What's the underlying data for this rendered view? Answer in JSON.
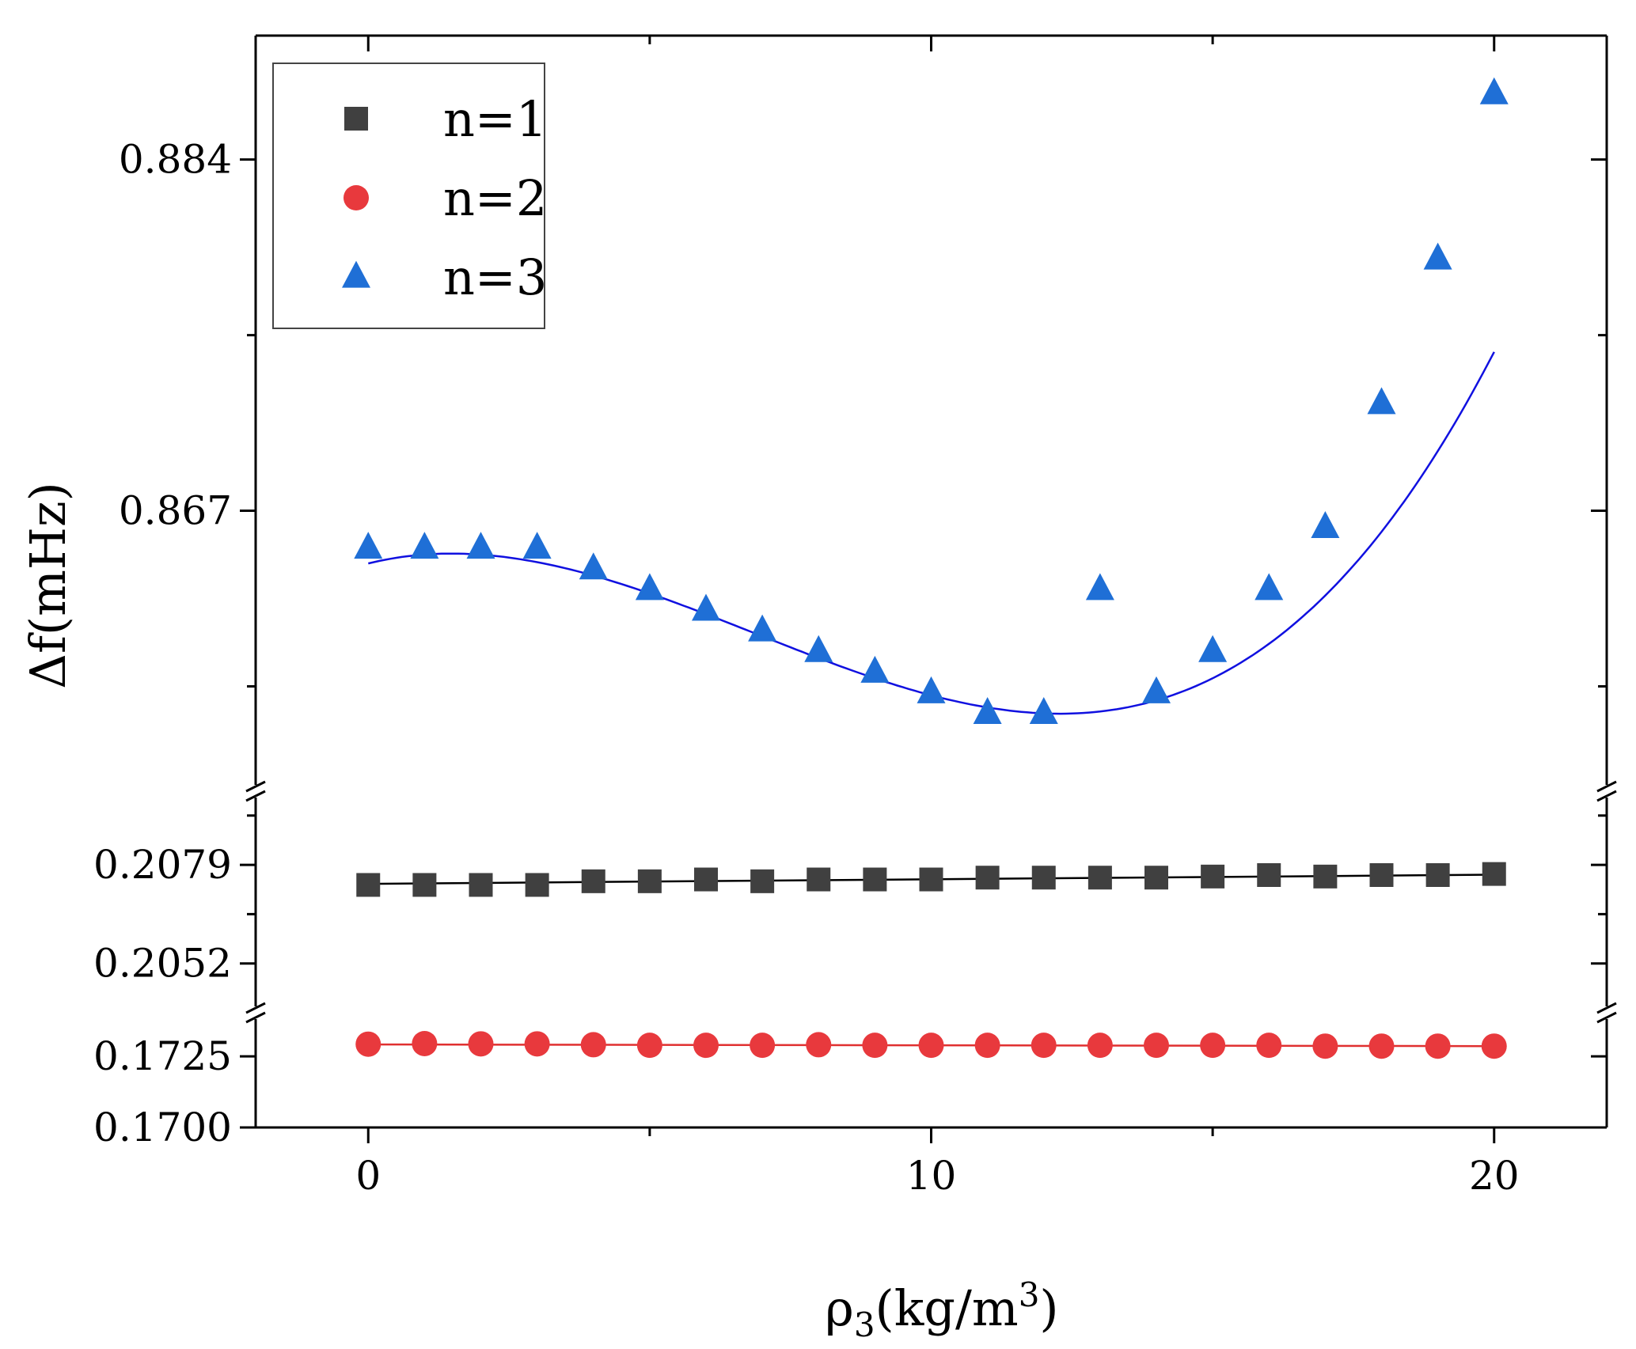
{
  "chart_data": {
    "type": "scatter",
    "title": "",
    "xlabel": "ρ",
    "xlabel_subscript": "3",
    "xlabel_unit_open": "(kg/m",
    "xlabel_unit_sup": "3",
    "xlabel_unit_close": ")",
    "ylabel": "Δf(mHz)",
    "xlim": [
      -2,
      22
    ],
    "x_ticks": [
      "0",
      "10",
      "20"
    ],
    "x_tick_values": [
      0,
      10,
      20
    ],
    "broken_y_axis": true,
    "y_segments": [
      {
        "ylim": [
          0.17,
          0.1732
        ],
        "tick_values": [
          0.17,
          0.1725
        ],
        "tick_labels": [
          "0.1700",
          "0.1725"
        ]
      },
      {
        "ylim": [
          0.2045,
          0.2097
        ],
        "tick_values": [
          0.2052,
          0.2079
        ],
        "tick_labels": [
          "0.2052",
          "0.2079"
        ]
      },
      {
        "ylim": [
          0.854,
          0.89
        ],
        "tick_values": [
          0.867,
          0.884
        ],
        "tick_labels": [
          "0.867",
          "0.884"
        ]
      }
    ],
    "legend": {
      "placement": "top-left"
    },
    "series": [
      {
        "name": "n=1",
        "marker": "square",
        "color": "#404040",
        "fit_color": "#000000",
        "segment": 1,
        "x": [
          0,
          1,
          2,
          3,
          4,
          5,
          6,
          7,
          8,
          9,
          10,
          11,
          12,
          13,
          14,
          15,
          16,
          17,
          18,
          19,
          20
        ],
        "y": [
          0.20735,
          0.20735,
          0.20735,
          0.20735,
          0.20745,
          0.20745,
          0.2075,
          0.20745,
          0.2075,
          0.2075,
          0.2075,
          0.20755,
          0.20755,
          0.20755,
          0.20755,
          0.20758,
          0.20762,
          0.20758,
          0.20762,
          0.20762,
          0.20765
        ],
        "fit": {
          "type": "linear",
          "x": [
            0,
            20
          ],
          "y": [
            0.20738,
            0.20763
          ]
        }
      },
      {
        "name": "n=2",
        "marker": "circle",
        "color": "#e8393d",
        "fit_color": "#e03030",
        "segment": 0,
        "x": [
          0,
          1,
          2,
          3,
          4,
          5,
          6,
          7,
          8,
          9,
          10,
          11,
          12,
          13,
          14,
          15,
          16,
          17,
          18,
          19,
          20
        ],
        "y": [
          0.17293,
          0.17295,
          0.17294,
          0.17294,
          0.17291,
          0.17289,
          0.17289,
          0.17289,
          0.17291,
          0.17289,
          0.17289,
          0.17289,
          0.17289,
          0.17289,
          0.17289,
          0.17289,
          0.17289,
          0.17286,
          0.17286,
          0.17286,
          0.17286
        ],
        "fit": {
          "type": "linear",
          "x": [
            0,
            20
          ],
          "y": [
            0.17292,
            0.17286
          ]
        }
      },
      {
        "name": "n=3",
        "marker": "triangle",
        "color": "#1f6fd6",
        "fit_color": "#1010e0",
        "segment": 2,
        "x": [
          0,
          1,
          2,
          3,
          4,
          5,
          6,
          7,
          8,
          9,
          10,
          11,
          12,
          13,
          14,
          15,
          16,
          17,
          18,
          19,
          20
        ],
        "y": [
          0.8652,
          0.8652,
          0.8652,
          0.8652,
          0.8642,
          0.8632,
          0.8622,
          0.8612,
          0.8602,
          0.8592,
          0.8582,
          0.8572,
          0.8572,
          0.8632,
          0.8582,
          0.8602,
          0.8632,
          0.8662,
          0.8722,
          0.8792,
          0.8872
        ],
        "fit": {
          "type": "cubic",
          "coeffs": [
            0.86445,
            0.000672,
            -0.000254,
            1.23e-05
          ]
        }
      }
    ]
  }
}
